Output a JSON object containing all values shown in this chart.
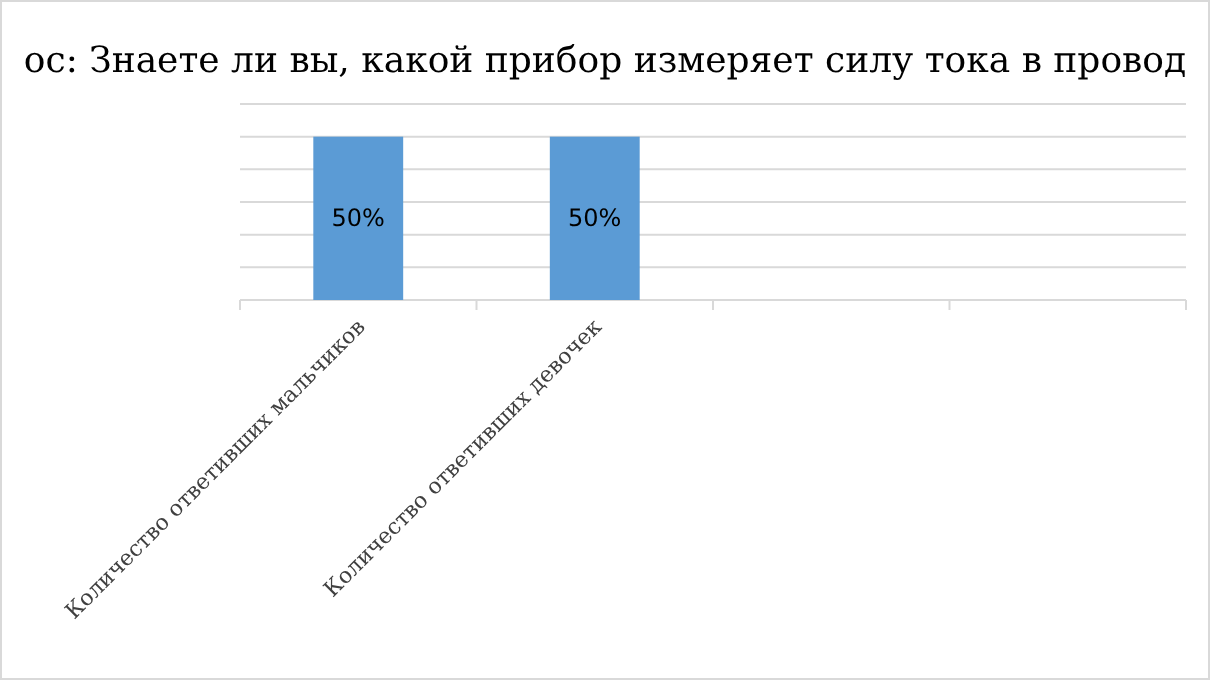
{
  "chart_data": {
    "type": "bar",
    "title": "ос:  Знаете ли вы, какой прибор измеряет силу тока в провод",
    "categories": [
      "Количество ответивших мальчиков",
      "Количество ответивших девочек",
      null,
      null
    ],
    "values": [
      50,
      50,
      null,
      null
    ],
    "value_labels": [
      "50%",
      "50%",
      null,
      null
    ],
    "color": "#5b9bd5",
    "ylim": [
      0,
      60
    ],
    "yticks": [
      {
        "value": 0,
        "label": null
      },
      {
        "value": 10,
        "label": null
      },
      {
        "value": 20,
        "label": null
      },
      {
        "value": 30,
        "label": null
      },
      {
        "value": 40,
        "label": null
      },
      {
        "value": 50,
        "label": null
      },
      {
        "value": 60,
        "label": null
      }
    ],
    "grid": "y",
    "tick_labels": "x"
  }
}
